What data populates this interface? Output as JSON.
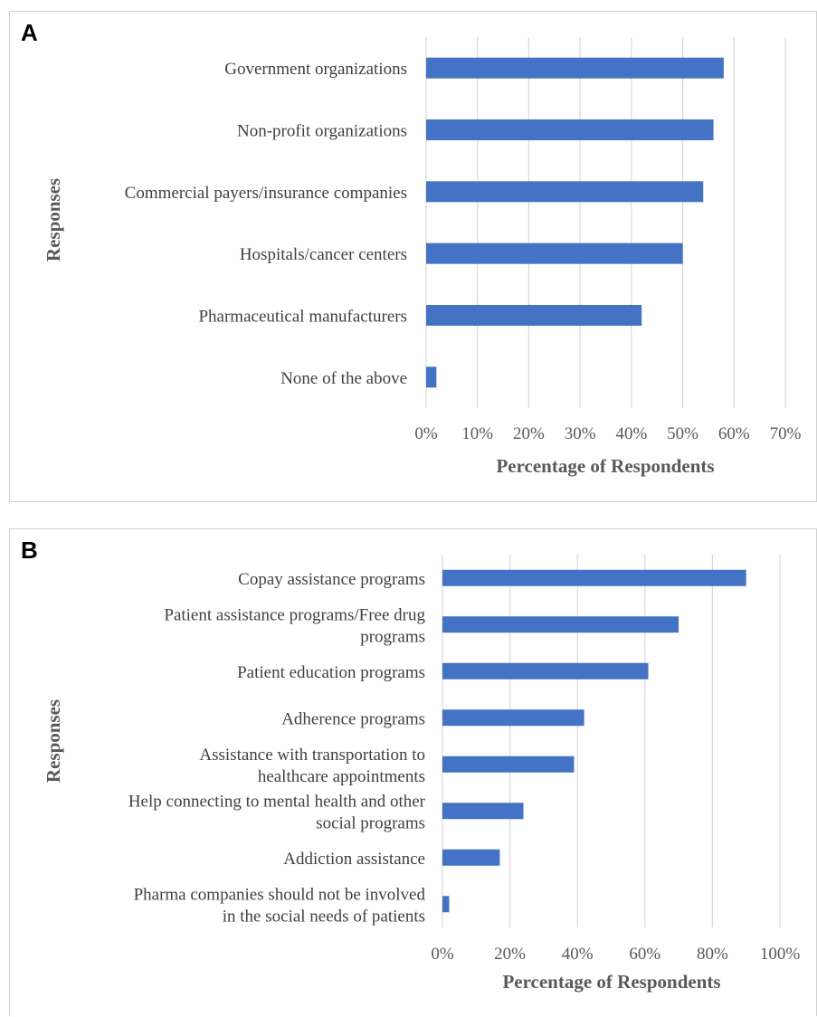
{
  "panels": [
    {
      "letter": "A"
    },
    {
      "letter": "B"
    }
  ],
  "chart_data": [
    {
      "type": "bar",
      "orientation": "horizontal",
      "categories": [
        [
          "Government organizations"
        ],
        [
          "Non-profit organizations"
        ],
        [
          "Commercial payers/insurance companies"
        ],
        [
          "Hospitals/cancer centers"
        ],
        [
          "Pharmaceutical manufacturers"
        ],
        [
          "None of the above"
        ]
      ],
      "values": [
        58,
        56,
        54,
        50,
        42,
        2
      ],
      "xlim": [
        0,
        70
      ],
      "xticks": [
        "0%",
        "10%",
        "20%",
        "30%",
        "40%",
        "50%",
        "60%",
        "70%"
      ],
      "xlabel": "Percentage of Respondents",
      "ylabel": "Responses",
      "grid": "vertical",
      "bar_color": "#4472c4"
    },
    {
      "type": "bar",
      "orientation": "horizontal",
      "categories": [
        [
          "Copay assistance programs"
        ],
        [
          "Patient assistance programs/Free drug",
          "programs"
        ],
        [
          "Patient education programs"
        ],
        [
          "Adherence programs"
        ],
        [
          "Assistance with transportation to",
          "healthcare appointments"
        ],
        [
          "Help connecting to mental health and other",
          "social programs"
        ],
        [
          "Addiction assistance"
        ],
        [
          "Pharma companies should not be involved",
          "in the social needs of patients"
        ]
      ],
      "values": [
        90,
        70,
        61,
        42,
        39,
        24,
        17,
        2
      ],
      "xlim": [
        0,
        100
      ],
      "xticks": [
        "0%",
        "20%",
        "40%",
        "60%",
        "80%",
        "100%"
      ],
      "xlabel": "Percentage of Respondents",
      "ylabel": "Responses",
      "grid": "vertical",
      "bar_color": "#4472c4"
    }
  ]
}
